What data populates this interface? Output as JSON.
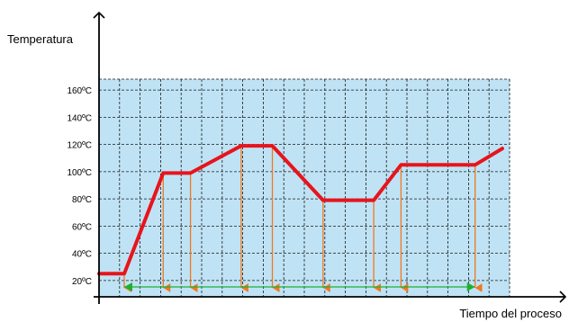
{
  "chart_data": {
    "type": "line",
    "title": "",
    "ylabel": "Temperatura",
    "xlabel": "Tiempo del proceso",
    "y_ticks": [
      "20ºC",
      "40ºC",
      "60ºC",
      "80ºC",
      "100ºC",
      "120ºC",
      "140ºC",
      "160ºC"
    ],
    "y_tick_values": [
      20,
      40,
      60,
      80,
      100,
      120,
      140,
      160
    ],
    "ylim": [
      8,
      168
    ],
    "x_ticks_visible": false,
    "grid": true,
    "plot_background": "#bfe3f5",
    "grid_color": "#1a1a1a",
    "series": [
      {
        "color": "#e8141c",
        "x": [
          0,
          0.03,
          0.13,
          0.2,
          0.33,
          0.41,
          0.54,
          0.67,
          0.74,
          0.93,
          1.0
        ],
        "y": [
          25,
          25,
          99,
          99,
          119,
          119,
          79,
          79,
          105,
          105,
          117
        ]
      }
    ],
    "annotations": {
      "drop_arrow_color": "#f07820",
      "drop_arrows_at_x": [
        0.03,
        0.13,
        0.2,
        0.33,
        0.41,
        0.54,
        0.67,
        0.74,
        0.93
      ],
      "span_arrow_color": "#20b030",
      "span_arrow_x_range": [
        0.03,
        0.93
      ]
    }
  }
}
